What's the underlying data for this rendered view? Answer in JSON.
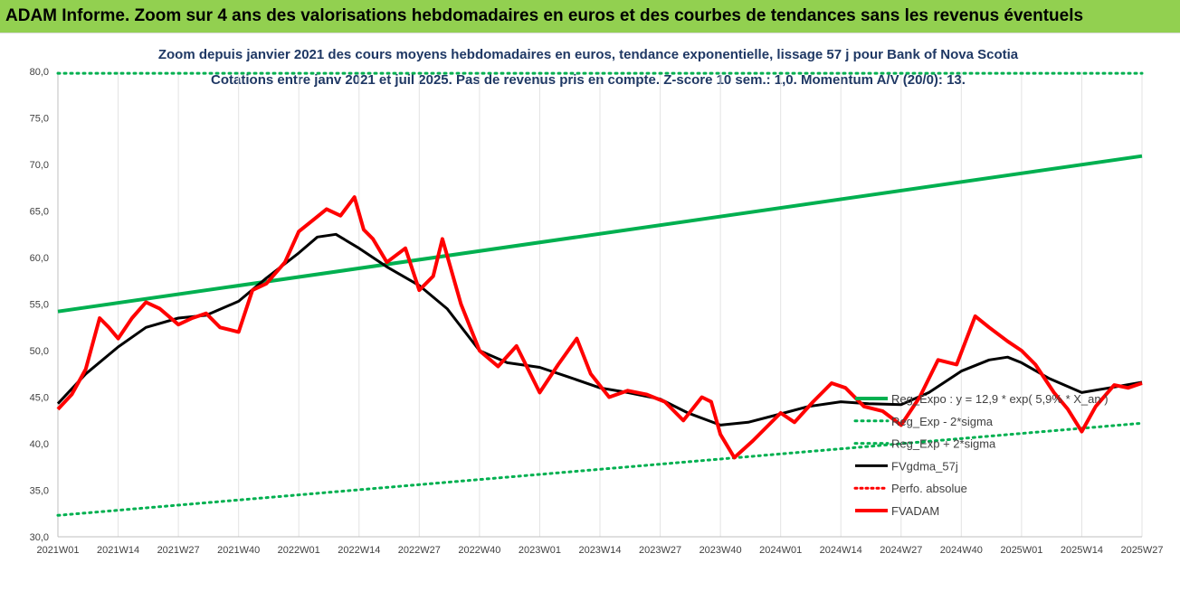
{
  "header": {
    "title": "ADAM Informe. Zoom sur 4 ans des valorisations hebdomadaires en euros et des courbes de tendances sans les revenus éventuels"
  },
  "chart_data": {
    "type": "line",
    "subtitle_line1": "Zoom depuis janvier 2021 des cours moyens hebdomadaires en euros, tendance exponentielle, lissage 57 j pour Bank of Nova Scotia",
    "subtitle_line2": "Cotations entre janv 2021 et juil 2025. Pas de revenus pris en compte. Z-score 10 sem.: 1,0. Momentum A/V (20/0): 13.",
    "ylim": [
      30,
      80
    ],
    "y_ticks": [
      "30,0",
      "35,0",
      "40,0",
      "45,0",
      "50,0",
      "55,0",
      "60,0",
      "65,0",
      "70,0",
      "75,0",
      "80,0"
    ],
    "x_ticks": [
      "2021W01",
      "2021W14",
      "2021W27",
      "2021W40",
      "2022W01",
      "2022W14",
      "2022W27",
      "2022W40",
      "2023W01",
      "2023W14",
      "2023W27",
      "2023W40",
      "2024W01",
      "2024W14",
      "2024W27",
      "2024W40",
      "2025W01",
      "2025W14",
      "2025W27"
    ],
    "legend_position": "right",
    "grid": "vertical",
    "colors": {
      "reg_exp": "#00b050",
      "fvgdma": "#000000",
      "perfo": "#ff0000",
      "fvadam": "#ff0000"
    },
    "series": [
      {
        "name": "Reg_Expo : y = 12,9 * exp( 5,9% * X_an )",
        "style": "solid-thick-green",
        "x": [
          "2021W01",
          "2025W27"
        ],
        "values": [
          54.2,
          70.9
        ]
      },
      {
        "name": "Reg_Exp - 2*sigma",
        "style": "dotted-green",
        "x": [
          "2021W01",
          "2025W27"
        ],
        "values": [
          32.3,
          42.2
        ]
      },
      {
        "name": "Reg_Exp + 2*sigma",
        "style": "dotted-green",
        "x": [
          "2021W01",
          "2025W27"
        ],
        "values": [
          79.8,
          79.8
        ]
      },
      {
        "name": "FVgdma_57j",
        "style": "solid-black",
        "x": [
          "2021W01",
          "2021W07",
          "2021W14",
          "2021W20",
          "2021W27",
          "2021W33",
          "2021W40",
          "2021W46",
          "2022W01",
          "2022W05",
          "2022W09",
          "2022W14",
          "2022W20",
          "2022W27",
          "2022W33",
          "2022W40",
          "2022W46",
          "2023W01",
          "2023W07",
          "2023W14",
          "2023W20",
          "2023W27",
          "2023W33",
          "2023W40",
          "2023W46",
          "2024W01",
          "2024W07",
          "2024W14",
          "2024W20",
          "2024W27",
          "2024W33",
          "2024W40",
          "2024W46",
          "2024W50",
          "2025W01",
          "2025W07",
          "2025W14",
          "2025W20",
          "2025W27"
        ],
        "values": [
          44.3,
          47.5,
          50.4,
          52.5,
          53.5,
          53.8,
          55.3,
          57.8,
          60.5,
          62.2,
          62.5,
          61.0,
          59.0,
          57.0,
          54.5,
          50.0,
          48.7,
          48.2,
          47.2,
          46.0,
          45.5,
          44.8,
          43.3,
          42.0,
          42.3,
          43.2,
          44.0,
          44.5,
          44.3,
          44.2,
          45.5,
          47.8,
          49.0,
          49.3,
          48.7,
          47.0,
          45.5,
          46.0,
          46.6
        ]
      },
      {
        "name": "Perfo. absolue",
        "style": "dotted-red",
        "x": [],
        "values": []
      },
      {
        "name": "FVADAM",
        "style": "solid-thick-red",
        "x": [
          "2021W01",
          "2021W04",
          "2021W07",
          "2021W10",
          "2021W12",
          "2021W14",
          "2021W17",
          "2021W20",
          "2021W23",
          "2021W27",
          "2021W30",
          "2021W33",
          "2021W36",
          "2021W40",
          "2021W43",
          "2021W46",
          "2021W50",
          "2022W01",
          "2022W04",
          "2022W07",
          "2022W10",
          "2022W13",
          "2022W15",
          "2022W17",
          "2022W20",
          "2022W24",
          "2022W27",
          "2022W30",
          "2022W32",
          "2022W36",
          "2022W40",
          "2022W44",
          "2022W48",
          "2023W01",
          "2023W05",
          "2023W09",
          "2023W12",
          "2023W16",
          "2023W20",
          "2023W24",
          "2023W28",
          "2023W32",
          "2023W36",
          "2023W38",
          "2023W40",
          "2023W43",
          "2023W47",
          "2024W01",
          "2024W04",
          "2024W08",
          "2024W12",
          "2024W15",
          "2024W19",
          "2024W23",
          "2024W27",
          "2024W31",
          "2024W35",
          "2024W39",
          "2024W43",
          "2024W46",
          "2024W50",
          "2025W01",
          "2025W04",
          "2025W08",
          "2025W11",
          "2025W14",
          "2025W17",
          "2025W21",
          "2025W24",
          "2025W27"
        ],
        "values": [
          43.7,
          45.3,
          48.0,
          53.5,
          52.5,
          51.3,
          53.5,
          55.2,
          54.5,
          52.8,
          53.5,
          54.0,
          52.5,
          52.0,
          56.5,
          57.2,
          59.5,
          62.8,
          64.0,
          65.2,
          64.5,
          66.5,
          63.0,
          62.0,
          59.5,
          61.0,
          56.5,
          58.0,
          62.0,
          55.0,
          50.0,
          48.3,
          50.5,
          45.5,
          48.5,
          51.3,
          47.5,
          45.0,
          45.7,
          45.3,
          44.5,
          42.5,
          45.0,
          44.5,
          41.0,
          38.5,
          40.3,
          43.3,
          42.3,
          44.5,
          46.5,
          46.0,
          44.0,
          43.5,
          42.0,
          45.0,
          49.0,
          48.5,
          53.7,
          52.5,
          51.0,
          50.0,
          48.5,
          45.5,
          43.7,
          41.3,
          44.0,
          46.3,
          46.0,
          46.5
        ]
      }
    ]
  }
}
